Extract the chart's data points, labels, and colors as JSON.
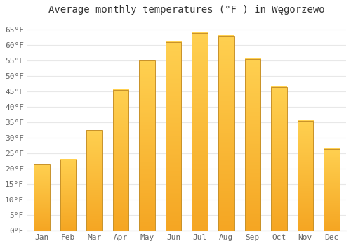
{
  "title": "Average monthly temperatures (°F ) in Węgorzewo",
  "months": [
    "Jan",
    "Feb",
    "Mar",
    "Apr",
    "May",
    "Jun",
    "Jul",
    "Aug",
    "Sep",
    "Oct",
    "Nov",
    "Dec"
  ],
  "values": [
    21.5,
    23,
    32.5,
    45.5,
    55,
    61,
    64,
    63,
    55.5,
    46.5,
    35.5,
    26.5
  ],
  "bar_color_bottom": "#F5A623",
  "bar_color_top": "#FFD050",
  "bar_edge_color": "#C8922A",
  "ylim": [
    0,
    68
  ],
  "yticks": [
    0,
    5,
    10,
    15,
    20,
    25,
    30,
    35,
    40,
    45,
    50,
    55,
    60,
    65
  ],
  "ytick_labels": [
    "0°F",
    "5°F",
    "10°F",
    "15°F",
    "20°F",
    "25°F",
    "30°F",
    "35°F",
    "40°F",
    "45°F",
    "50°F",
    "55°F",
    "60°F",
    "65°F"
  ],
  "background_color": "#ffffff",
  "grid_color": "#e8e8e8",
  "title_fontsize": 10,
  "tick_fontsize": 8
}
